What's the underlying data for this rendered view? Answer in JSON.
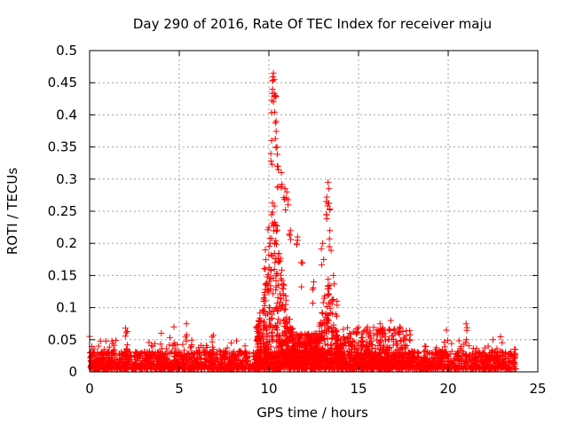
{
  "chart_data": {
    "type": "scatter",
    "title": "Day 290 of 2016, Rate Of TEC Index for receiver maju",
    "xlabel": "GPS time / hours",
    "ylabel": "ROTI / TECUs",
    "xlim": [
      0,
      25
    ],
    "ylim": [
      0,
      0.5
    ],
    "xticks": [
      0,
      5,
      10,
      15,
      20,
      25
    ],
    "yticks": [
      0,
      0.05,
      0.1,
      0.15,
      0.2,
      0.25,
      0.3,
      0.35,
      0.4,
      0.45,
      0.5
    ],
    "xtick_labels": [
      "0",
      "5",
      "10",
      "15",
      "20",
      "25"
    ],
    "ytick_labels": [
      "0",
      "0.05",
      "0.1",
      "0.15",
      "0.2",
      "0.25",
      "0.3",
      "0.35",
      "0.4",
      "0.45",
      "0.5"
    ],
    "grid": true,
    "marker": "+",
    "color": "#ff0000",
    "series": [
      {
        "name": "ROTI",
        "summary": "dense band of points 0.005-0.03 TECU/min across 0-23.7 h; strong enhancement 9.5-13.5 h with peak ~0.465 near 10.3 h and secondary peak ~0.29 near 13.3 h",
        "notable_points": [
          {
            "x": 0.0,
            "y": 0.055
          },
          {
            "x": 0.5,
            "y": 0.04
          },
          {
            "x": 2.0,
            "y": 0.068
          },
          {
            "x": 2.1,
            "y": 0.063
          },
          {
            "x": 4.0,
            "y": 0.06
          },
          {
            "x": 4.7,
            "y": 0.07
          },
          {
            "x": 5.4,
            "y": 0.075
          },
          {
            "x": 6.9,
            "y": 0.057
          },
          {
            "x": 7.9,
            "y": 0.045
          },
          {
            "x": 9.8,
            "y": 0.19
          },
          {
            "x": 10.0,
            "y": 0.225
          },
          {
            "x": 10.15,
            "y": 0.36
          },
          {
            "x": 10.2,
            "y": 0.44
          },
          {
            "x": 10.25,
            "y": 0.465
          },
          {
            "x": 10.3,
            "y": 0.455
          },
          {
            "x": 10.35,
            "y": 0.43
          },
          {
            "x": 10.4,
            "y": 0.39
          },
          {
            "x": 10.45,
            "y": 0.35
          },
          {
            "x": 10.5,
            "y": 0.32
          },
          {
            "x": 10.7,
            "y": 0.31
          },
          {
            "x": 10.9,
            "y": 0.285
          },
          {
            "x": 11.0,
            "y": 0.28
          },
          {
            "x": 11.2,
            "y": 0.22
          },
          {
            "x": 11.6,
            "y": 0.21
          },
          {
            "x": 11.8,
            "y": 0.17
          },
          {
            "x": 12.5,
            "y": 0.14
          },
          {
            "x": 13.0,
            "y": 0.2
          },
          {
            "x": 13.2,
            "y": 0.265
          },
          {
            "x": 13.3,
            "y": 0.295
          },
          {
            "x": 13.35,
            "y": 0.285
          },
          {
            "x": 13.4,
            "y": 0.22
          },
          {
            "x": 13.6,
            "y": 0.15
          },
          {
            "x": 13.8,
            "y": 0.11
          },
          {
            "x": 14.5,
            "y": 0.06
          },
          {
            "x": 15.5,
            "y": 0.07
          },
          {
            "x": 16.2,
            "y": 0.075
          },
          {
            "x": 16.8,
            "y": 0.08
          },
          {
            "x": 17.3,
            "y": 0.07
          },
          {
            "x": 19.9,
            "y": 0.065
          },
          {
            "x": 21.0,
            "y": 0.075
          },
          {
            "x": 22.5,
            "y": 0.05
          },
          {
            "x": 23.7,
            "y": 0.035
          }
        ]
      }
    ]
  }
}
